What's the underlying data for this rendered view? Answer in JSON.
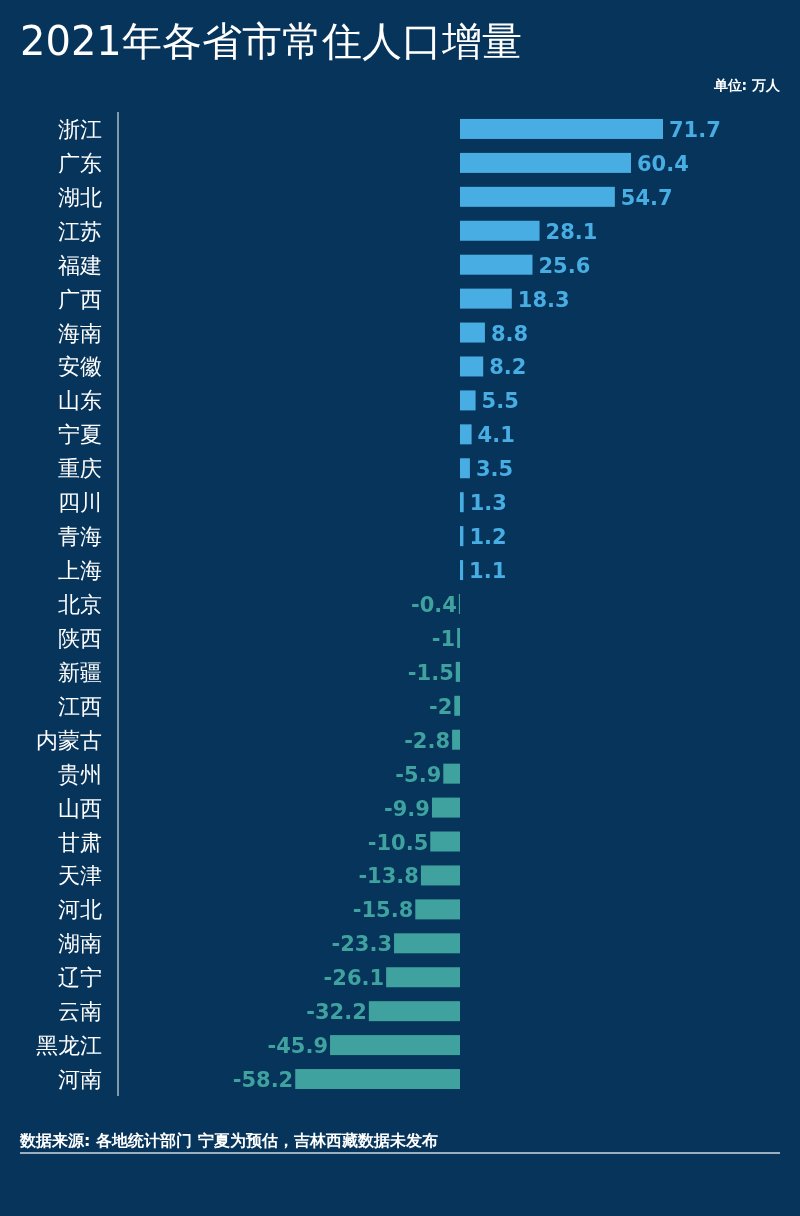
{
  "chart_data": {
    "type": "bar",
    "orientation": "horizontal",
    "title": "2021年各省市常住人口增量",
    "subtitle": "单位: 万人",
    "data_labels": true,
    "categories": [
      "浙江",
      "广东",
      "湖北",
      "江苏",
      "福建",
      "广西",
      "海南",
      "安徽",
      "山东",
      "宁夏",
      "重庆",
      "四川",
      "青海",
      "上海",
      "北京",
      "陕西",
      "新疆",
      "江西",
      "内蒙古",
      "贵州",
      "山西",
      "甘肃",
      "天津",
      "河北",
      "湖南",
      "辽宁",
      "云南",
      "黑龙江",
      "河南"
    ],
    "values": [
      71.7,
      60.4,
      54.7,
      28.1,
      25.6,
      18.3,
      8.8,
      8.2,
      5.5,
      4.1,
      3.5,
      1.3,
      1.2,
      1.1,
      -0.4,
      -1,
      -1.5,
      -2,
      -2.8,
      -5.9,
      -9.9,
      -10.5,
      -13.8,
      -15.8,
      -23.3,
      -26.1,
      -32.2,
      -45.9,
      -58.2
    ],
    "colors": [
      "#47ade2",
      "#47ade2",
      "#47ade2",
      "#47ade2",
      "#47ade2",
      "#47ade2",
      "#47ade2",
      "#47ade2",
      "#47ade2",
      "#47ade2",
      "#47ade2",
      "#47ade2",
      "#47ade2",
      "#47ade2",
      "#3fa29e",
      "#3fa29e",
      "#3fa29e",
      "#3fa29e",
      "#3fa29e",
      "#3fa29e",
      "#3fa29e",
      "#3fa29e",
      "#3fa29e",
      "#3fa29e",
      "#3fa29e",
      "#3fa29e",
      "#3fa29e",
      "#3fa29e",
      "#3fa29e"
    ],
    "annotations": [
      "数据来源: 各地统计部门 宁夏为预估，吉林西藏数据未发布"
    ]
  }
}
